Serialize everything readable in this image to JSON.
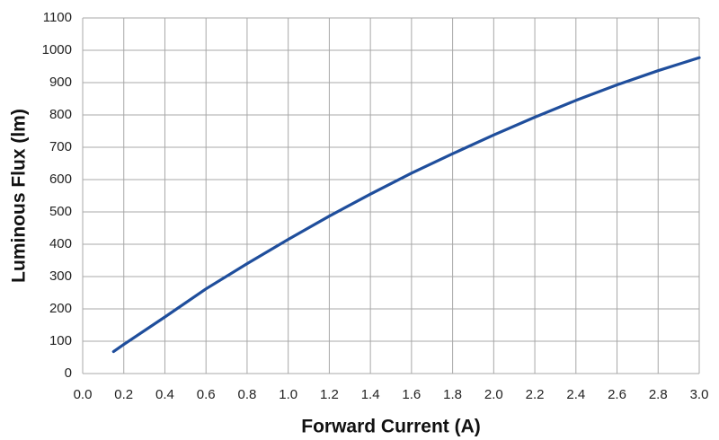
{
  "chart_data": {
    "type": "line",
    "xlabel": "Forward Current (A)",
    "ylabel": "Luminous Flux (lm)",
    "x": [
      0.15,
      0.2,
      0.4,
      0.6,
      0.8,
      1.0,
      1.2,
      1.4,
      1.6,
      1.8,
      2.0,
      2.2,
      2.4,
      2.6,
      2.8,
      3.0
    ],
    "series": [
      {
        "name": "Luminous Flux",
        "color": "#1f4e9c",
        "values": [
          68,
          90,
          175,
          262,
          340,
          415,
          487,
          555,
          620,
          680,
          738,
          793,
          845,
          893,
          937,
          977
        ]
      }
    ],
    "xlim": [
      0,
      3
    ],
    "xticks": [
      {
        "value": 0,
        "label": "0.0"
      },
      0.2,
      0.4,
      0.6,
      0.8,
      {
        "value": 1,
        "label": "1.0"
      },
      1.2,
      1.4,
      1.6,
      1.8,
      {
        "value": 2,
        "label": "2.0"
      },
      2.2,
      2.4,
      2.6,
      2.8,
      {
        "value": 3,
        "label": "3.0"
      }
    ],
    "ylim": [
      0,
      1100
    ],
    "yticks": [
      0,
      100,
      200,
      300,
      400,
      500,
      600,
      700,
      800,
      900,
      1000,
      1100
    ],
    "grid": true
  }
}
